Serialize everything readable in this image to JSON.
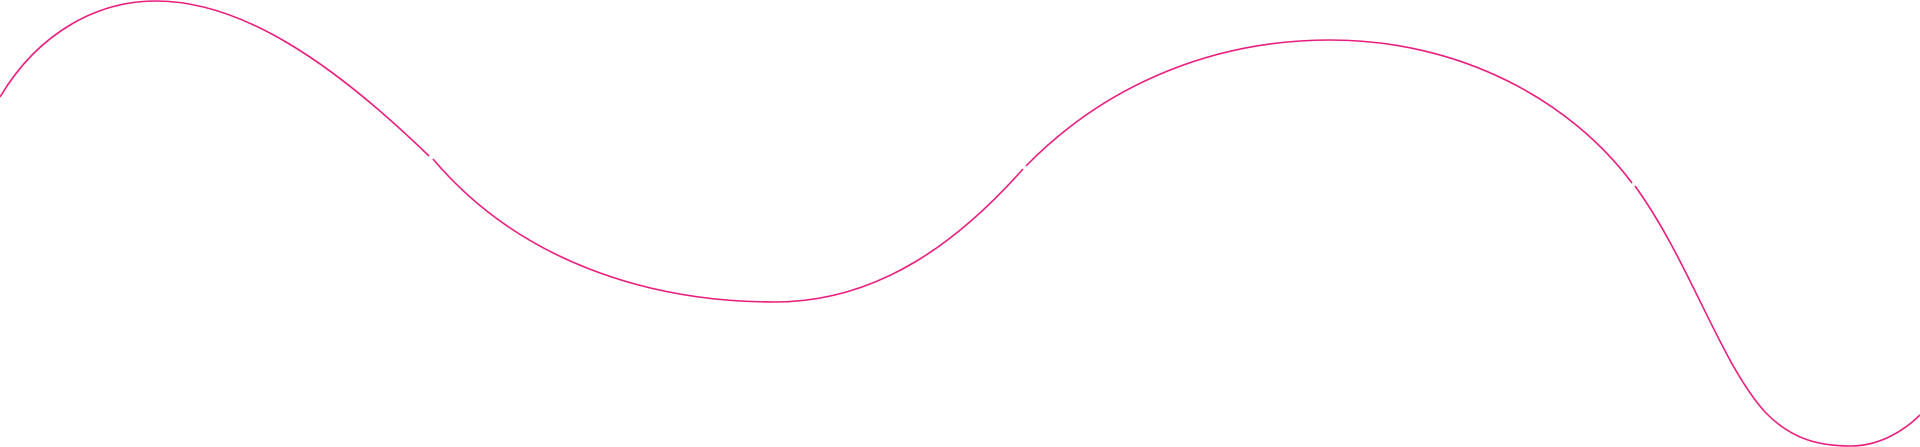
{
  "decoration": {
    "type": "wavy-line",
    "stroke_color": "#e91e7f",
    "background_color": "#ffffff",
    "segment_count": 4
  }
}
